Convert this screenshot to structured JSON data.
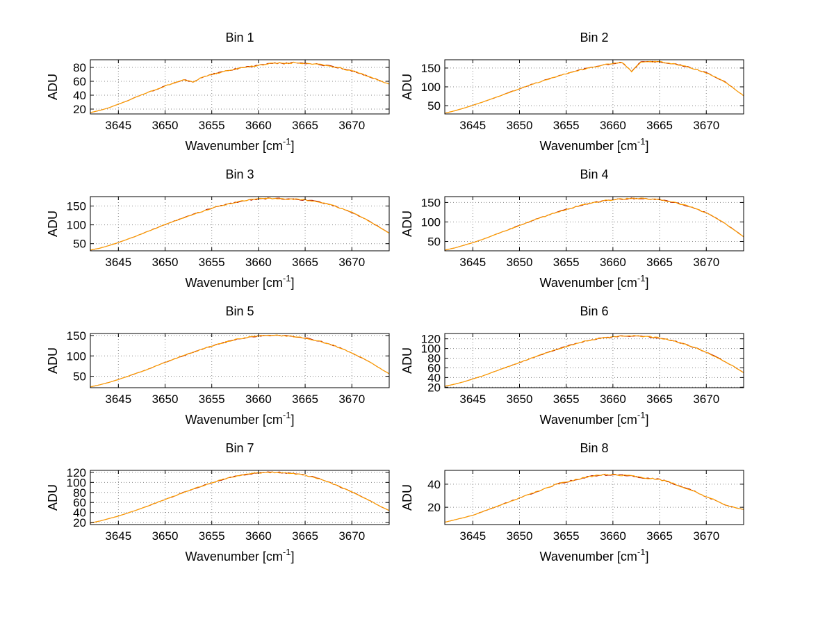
{
  "figure": {
    "background": "#ffffff",
    "layout": "4x2 subplot grid"
  },
  "labels": {
    "ylabel": "ADU",
    "xlabel_main": "Wavenumber [cm",
    "xlabel_sup": "-1",
    "xlabel_close": "]"
  },
  "chart_data": [
    {
      "type": "line",
      "title": "Bin 1",
      "ylabel": "ADU",
      "xlabel": "Wavenumber [cm⁻¹]",
      "xlim": [
        3642,
        3674
      ],
      "ylim": [
        13,
        91
      ],
      "xticks": [
        3645,
        3650,
        3655,
        3660,
        3665,
        3670
      ],
      "yticks": [
        20,
        40,
        60,
        80
      ],
      "grid": true,
      "legend": false,
      "line_color": "#ffa500",
      "secondary_color": "#bb2200",
      "noise": 1.2,
      "x": [
        3642,
        3643,
        3644,
        3645,
        3646,
        3647,
        3648,
        3649,
        3650,
        3651,
        3652,
        3653,
        3654,
        3655,
        3656,
        3657,
        3658,
        3659,
        3660,
        3661,
        3662,
        3663,
        3664,
        3665,
        3666,
        3667,
        3668,
        3669,
        3670,
        3671,
        3672,
        3673,
        3674
      ],
      "y": [
        15,
        18,
        22,
        27,
        32,
        38,
        43,
        48,
        53,
        58,
        62,
        59,
        66,
        70,
        73,
        76,
        79,
        81,
        83,
        85,
        86,
        86,
        87,
        86,
        85,
        83,
        81,
        78,
        75,
        71,
        66,
        61,
        56
      ]
    },
    {
      "type": "line",
      "title": "Bin 2",
      "ylabel": "ADU",
      "xlabel": "Wavenumber [cm⁻¹]",
      "xlim": [
        3642,
        3674
      ],
      "ylim": [
        28,
        172
      ],
      "xticks": [
        3645,
        3650,
        3655,
        3660,
        3665,
        3670
      ],
      "yticks": [
        50,
        100,
        150
      ],
      "grid": true,
      "legend": false,
      "line_color": "#ffa500",
      "secondary_color": "#bb2200",
      "noise": 1.8,
      "x": [
        3642,
        3643,
        3644,
        3645,
        3646,
        3647,
        3648,
        3649,
        3650,
        3651,
        3652,
        3653,
        3654,
        3655,
        3656,
        3657,
        3658,
        3659,
        3660,
        3661,
        3662,
        3663,
        3664,
        3665,
        3666,
        3667,
        3668,
        3669,
        3670,
        3671,
        3672,
        3673,
        3674
      ],
      "y": [
        30,
        36,
        43,
        51,
        59,
        68,
        77,
        86,
        95,
        104,
        112,
        120,
        128,
        135,
        142,
        148,
        153,
        158,
        162,
        165,
        141,
        166,
        167,
        166,
        163,
        159,
        153,
        146,
        137,
        126,
        113,
        95,
        76
      ]
    },
    {
      "type": "line",
      "title": "Bin 3",
      "ylabel": "ADU",
      "xlabel": "Wavenumber [cm⁻¹]",
      "xlim": [
        3642,
        3674
      ],
      "ylim": [
        31,
        175
      ],
      "xticks": [
        3645,
        3650,
        3655,
        3660,
        3665,
        3670
      ],
      "yticks": [
        50,
        100,
        150
      ],
      "grid": true,
      "legend": false,
      "line_color": "#ffa500",
      "secondary_color": "#bb2200",
      "noise": 1.8,
      "x": [
        3642,
        3643,
        3644,
        3645,
        3646,
        3647,
        3648,
        3649,
        3650,
        3651,
        3652,
        3653,
        3654,
        3655,
        3656,
        3657,
        3658,
        3659,
        3660,
        3661,
        3662,
        3663,
        3664,
        3665,
        3666,
        3667,
        3668,
        3669,
        3670,
        3671,
        3672,
        3673,
        3674
      ],
      "y": [
        33,
        38,
        45,
        53,
        62,
        71,
        81,
        91,
        101,
        110,
        119,
        128,
        136,
        144,
        151,
        157,
        162,
        166,
        169,
        170,
        170,
        169,
        168,
        166,
        163,
        158,
        151,
        143,
        133,
        121,
        108,
        93,
        78
      ]
    },
    {
      "type": "line",
      "title": "Bin 4",
      "ylabel": "ADU",
      "xlabel": "Wavenumber [cm⁻¹]",
      "xlim": [
        3642,
        3674
      ],
      "ylim": [
        26,
        165
      ],
      "xticks": [
        3645,
        3650,
        3655,
        3660,
        3665,
        3670
      ],
      "yticks": [
        50,
        100,
        150
      ],
      "grid": true,
      "legend": false,
      "line_color": "#ffa500",
      "secondary_color": "#bb2200",
      "noise": 1.8,
      "x": [
        3642,
        3643,
        3644,
        3645,
        3646,
        3647,
        3648,
        3649,
        3650,
        3651,
        3652,
        3653,
        3654,
        3655,
        3656,
        3657,
        3658,
        3659,
        3660,
        3661,
        3662,
        3663,
        3664,
        3665,
        3666,
        3667,
        3668,
        3669,
        3670,
        3671,
        3672,
        3673,
        3674
      ],
      "y": [
        28,
        33,
        40,
        47,
        55,
        64,
        73,
        82,
        91,
        100,
        109,
        117,
        125,
        132,
        139,
        145,
        150,
        154,
        157,
        159,
        160,
        160,
        159,
        157,
        153,
        148,
        141,
        133,
        123,
        111,
        96,
        79,
        62
      ]
    },
    {
      "type": "line",
      "title": "Bin 5",
      "ylabel": "ADU",
      "xlabel": "Wavenumber [cm⁻¹]",
      "xlim": [
        3642,
        3674
      ],
      "ylim": [
        22,
        155
      ],
      "xticks": [
        3645,
        3650,
        3655,
        3660,
        3665,
        3670
      ],
      "yticks": [
        50,
        100,
        150
      ],
      "grid": true,
      "legend": false,
      "line_color": "#ffa500",
      "secondary_color": "#bb2200",
      "noise": 1.6,
      "x": [
        3642,
        3643,
        3644,
        3645,
        3646,
        3647,
        3648,
        3649,
        3650,
        3651,
        3652,
        3653,
        3654,
        3655,
        3656,
        3657,
        3658,
        3659,
        3660,
        3661,
        3662,
        3663,
        3664,
        3665,
        3666,
        3667,
        3668,
        3669,
        3670,
        3671,
        3672,
        3673,
        3674
      ],
      "y": [
        24,
        29,
        35,
        42,
        50,
        58,
        66,
        75,
        84,
        93,
        101,
        109,
        117,
        124,
        131,
        137,
        142,
        146,
        149,
        150,
        150,
        149,
        147,
        144,
        139,
        133,
        126,
        117,
        107,
        96,
        84,
        70,
        56
      ]
    },
    {
      "type": "line",
      "title": "Bin 6",
      "ylabel": "ADU",
      "xlabel": "Wavenumber [cm⁻¹]",
      "xlim": [
        3642,
        3674
      ],
      "ylim": [
        19,
        131
      ],
      "xticks": [
        3645,
        3650,
        3655,
        3660,
        3665,
        3670
      ],
      "yticks": [
        20,
        40,
        60,
        80,
        100,
        120
      ],
      "grid": true,
      "legend": false,
      "line_color": "#ffa500",
      "secondary_color": "#bb2200",
      "noise": 1.4,
      "x": [
        3642,
        3643,
        3644,
        3645,
        3646,
        3647,
        3648,
        3649,
        3650,
        3651,
        3652,
        3653,
        3654,
        3655,
        3656,
        3657,
        3658,
        3659,
        3660,
        3661,
        3662,
        3663,
        3664,
        3665,
        3666,
        3667,
        3668,
        3669,
        3670,
        3671,
        3672,
        3673,
        3674
      ],
      "y": [
        22,
        26,
        31,
        37,
        43,
        50,
        57,
        64,
        71,
        78,
        85,
        92,
        98,
        104,
        110,
        115,
        119,
        122,
        124,
        126,
        126,
        125,
        124,
        122,
        118,
        113,
        107,
        100,
        92,
        83,
        73,
        62,
        50
      ]
    },
    {
      "type": "line",
      "title": "Bin 7",
      "ylabel": "ADU",
      "xlabel": "Wavenumber [cm⁻¹]",
      "xlim": [
        3642,
        3674
      ],
      "ylim": [
        16,
        124
      ],
      "xticks": [
        3645,
        3650,
        3655,
        3660,
        3665,
        3670
      ],
      "yticks": [
        20,
        40,
        60,
        80,
        100,
        120
      ],
      "grid": true,
      "legend": false,
      "line_color": "#ffa500",
      "secondary_color": "#bb2200",
      "noise": 1.3,
      "x": [
        3642,
        3643,
        3644,
        3645,
        3646,
        3647,
        3648,
        3649,
        3650,
        3651,
        3652,
        3653,
        3654,
        3655,
        3656,
        3657,
        3658,
        3659,
        3660,
        3661,
        3662,
        3663,
        3664,
        3665,
        3666,
        3667,
        3668,
        3669,
        3670,
        3671,
        3672,
        3673,
        3674
      ],
      "y": [
        19,
        23,
        28,
        33,
        39,
        45,
        52,
        59,
        66,
        73,
        80,
        87,
        93,
        99,
        105,
        110,
        114,
        117,
        119,
        120,
        120,
        119,
        117,
        114,
        110,
        104,
        97,
        89,
        81,
        72,
        63,
        53,
        44
      ]
    },
    {
      "type": "line",
      "title": "Bin 8",
      "ylabel": "ADU",
      "xlabel": "Wavenumber [cm⁻¹]",
      "xlim": [
        3642,
        3674
      ],
      "ylim": [
        5,
        52
      ],
      "xticks": [
        3645,
        3650,
        3655,
        3660,
        3665,
        3670
      ],
      "yticks": [
        20,
        40
      ],
      "grid": true,
      "legend": false,
      "line_color": "#ffa500",
      "secondary_color": "#bb2200",
      "noise": 0.8,
      "x": [
        3642,
        3643,
        3644,
        3645,
        3646,
        3647,
        3648,
        3649,
        3650,
        3651,
        3652,
        3653,
        3654,
        3655,
        3656,
        3657,
        3658,
        3659,
        3660,
        3661,
        3662,
        3663,
        3664,
        3665,
        3666,
        3667,
        3668,
        3669,
        3670,
        3671,
        3672,
        3673,
        3674
      ],
      "y": [
        7,
        9,
        11,
        13,
        16,
        19,
        22,
        25,
        28,
        31,
        34,
        37,
        40,
        42,
        44,
        46,
        47,
        48,
        48,
        48,
        47,
        46,
        45,
        44,
        42,
        39,
        36,
        33,
        29,
        26,
        22,
        20,
        18
      ]
    }
  ]
}
